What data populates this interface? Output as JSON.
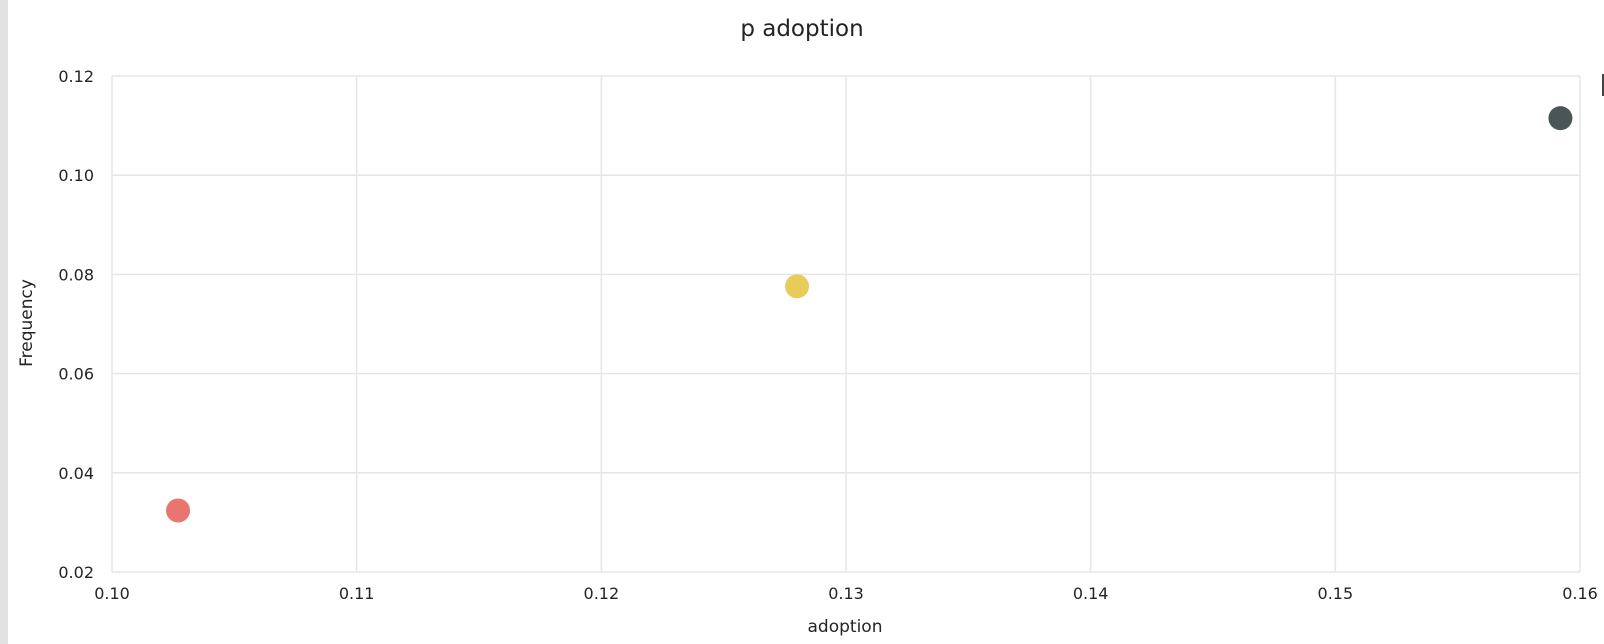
{
  "chart_data": {
    "type": "scatter",
    "title": "p adoption",
    "xlabel": "adoption",
    "ylabel": "Frequency",
    "xlim": [
      0.1,
      0.16
    ],
    "ylim": [
      0.02,
      0.12
    ],
    "xticks": [
      "0.10",
      "0.11",
      "0.12",
      "0.13",
      "0.14",
      "0.15",
      "0.16"
    ],
    "yticks": [
      "0.02",
      "0.04",
      "0.06",
      "0.08",
      "0.10",
      "0.12"
    ],
    "grid": true,
    "points": [
      {
        "x": 0.1027,
        "y": 0.0324,
        "color": "#E8756F",
        "label": ""
      },
      {
        "x": 0.128,
        "y": 0.0776,
        "color": "#E9CB5A",
        "label": ""
      },
      {
        "x": 0.1592,
        "y": 0.1115,
        "color": "#4A5556",
        "label": ""
      }
    ]
  }
}
